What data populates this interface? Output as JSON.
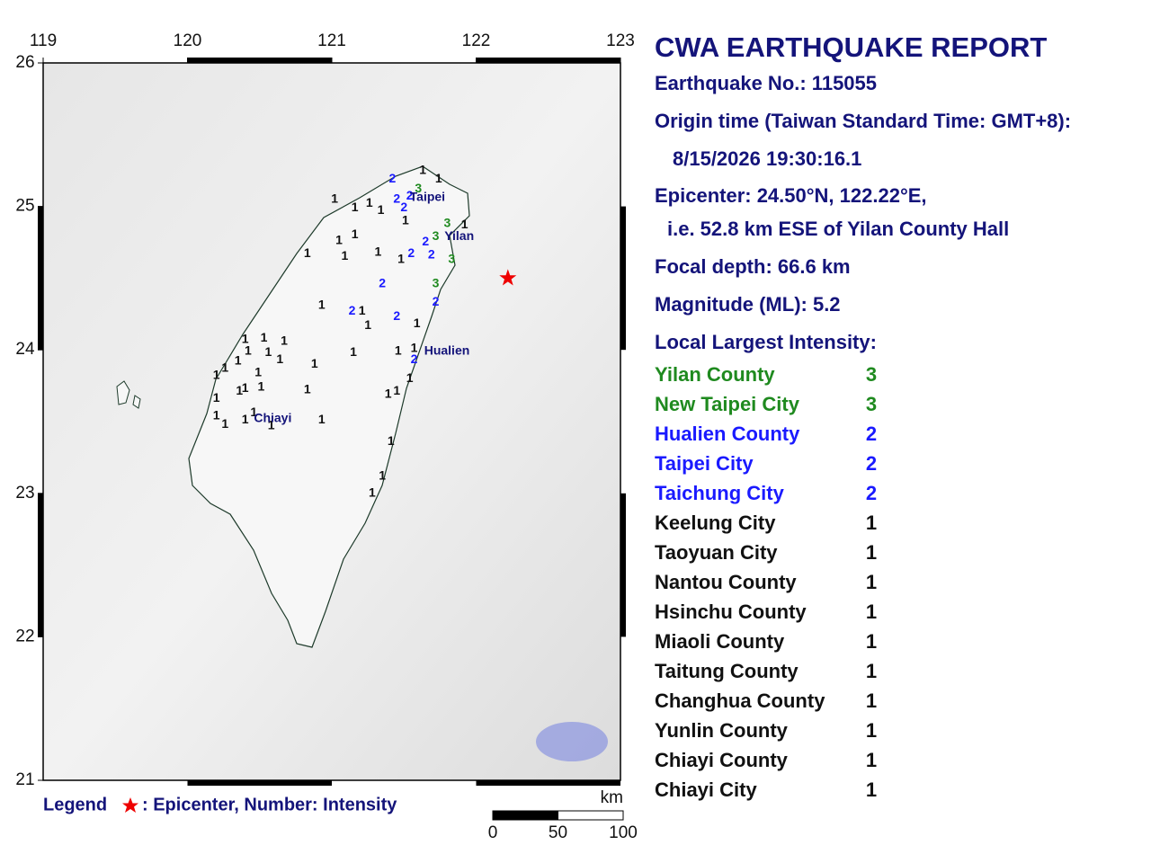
{
  "map": {
    "lon_ticks": [
      119,
      120,
      121,
      122,
      123
    ],
    "lat_ticks": [
      26,
      25,
      24,
      23,
      22,
      21
    ],
    "lon_range": [
      119,
      123
    ],
    "lat_range": [
      21,
      26
    ],
    "epicenter": {
      "lat": 24.5,
      "lon": 122.22
    },
    "intensity_colors": {
      "1": "#111111",
      "2": "#1a1aff",
      "3": "#1f8a1f"
    },
    "cities": [
      {
        "name": "Taipei",
        "lat": 25.06,
        "lon": 121.54
      },
      {
        "name": "Yilan",
        "lat": 24.79,
        "lon": 121.78
      },
      {
        "name": "Hualien",
        "lat": 23.99,
        "lon": 121.64
      },
      {
        "name": "Chiayi",
        "lat": 23.52,
        "lon": 120.46
      }
    ],
    "stations": [
      {
        "lat": 25.19,
        "lon": 121.42,
        "intensity": 2
      },
      {
        "lat": 25.05,
        "lon": 121.45,
        "intensity": 2
      },
      {
        "lat": 25.07,
        "lon": 121.54,
        "intensity": 2
      },
      {
        "lat": 24.99,
        "lon": 121.5,
        "intensity": 2
      },
      {
        "lat": 24.67,
        "lon": 121.55,
        "intensity": 2
      },
      {
        "lat": 24.66,
        "lon": 121.69,
        "intensity": 2
      },
      {
        "lat": 24.75,
        "lon": 121.65,
        "intensity": 2
      },
      {
        "lat": 24.46,
        "lon": 121.35,
        "intensity": 2
      },
      {
        "lat": 24.27,
        "lon": 121.14,
        "intensity": 2
      },
      {
        "lat": 24.23,
        "lon": 121.45,
        "intensity": 2
      },
      {
        "lat": 24.33,
        "lon": 121.72,
        "intensity": 2
      },
      {
        "lat": 23.93,
        "lon": 121.57,
        "intensity": 2
      },
      {
        "lat": 25.12,
        "lon": 121.6,
        "intensity": 3
      },
      {
        "lat": 24.88,
        "lon": 121.8,
        "intensity": 3
      },
      {
        "lat": 24.79,
        "lon": 121.72,
        "intensity": 3
      },
      {
        "lat": 24.63,
        "lon": 121.83,
        "intensity": 3
      },
      {
        "lat": 24.46,
        "lon": 121.72,
        "intensity": 3
      },
      {
        "lat": 25.05,
        "lon": 121.02,
        "intensity": 1
      },
      {
        "lat": 24.99,
        "lon": 121.16,
        "intensity": 1
      },
      {
        "lat": 25.02,
        "lon": 121.26,
        "intensity": 1
      },
      {
        "lat": 24.97,
        "lon": 121.34,
        "intensity": 1
      },
      {
        "lat": 25.25,
        "lon": 121.63,
        "intensity": 1
      },
      {
        "lat": 25.19,
        "lon": 121.74,
        "intensity": 1
      },
      {
        "lat": 24.9,
        "lon": 121.51,
        "intensity": 1
      },
      {
        "lat": 24.87,
        "lon": 121.92,
        "intensity": 1
      },
      {
        "lat": 24.76,
        "lon": 121.05,
        "intensity": 1
      },
      {
        "lat": 24.8,
        "lon": 121.16,
        "intensity": 1
      },
      {
        "lat": 24.68,
        "lon": 121.32,
        "intensity": 1
      },
      {
        "lat": 24.63,
        "lon": 121.48,
        "intensity": 1
      },
      {
        "lat": 24.67,
        "lon": 120.83,
        "intensity": 1
      },
      {
        "lat": 24.65,
        "lon": 121.09,
        "intensity": 1
      },
      {
        "lat": 24.31,
        "lon": 120.93,
        "intensity": 1
      },
      {
        "lat": 24.27,
        "lon": 121.21,
        "intensity": 1
      },
      {
        "lat": 24.18,
        "lon": 121.59,
        "intensity": 1
      },
      {
        "lat": 24.17,
        "lon": 121.25,
        "intensity": 1
      },
      {
        "lat": 24.07,
        "lon": 120.4,
        "intensity": 1
      },
      {
        "lat": 24.08,
        "lon": 120.53,
        "intensity": 1
      },
      {
        "lat": 24.06,
        "lon": 120.67,
        "intensity": 1
      },
      {
        "lat": 23.99,
        "lon": 120.42,
        "intensity": 1
      },
      {
        "lat": 23.98,
        "lon": 120.56,
        "intensity": 1
      },
      {
        "lat": 23.92,
        "lon": 120.35,
        "intensity": 1
      },
      {
        "lat": 23.87,
        "lon": 120.26,
        "intensity": 1
      },
      {
        "lat": 23.93,
        "lon": 120.64,
        "intensity": 1
      },
      {
        "lat": 23.9,
        "lon": 120.88,
        "intensity": 1
      },
      {
        "lat": 23.98,
        "lon": 121.15,
        "intensity": 1
      },
      {
        "lat": 23.99,
        "lon": 121.46,
        "intensity": 1
      },
      {
        "lat": 24.01,
        "lon": 121.57,
        "intensity": 1
      },
      {
        "lat": 23.82,
        "lon": 120.2,
        "intensity": 1
      },
      {
        "lat": 23.84,
        "lon": 120.49,
        "intensity": 1
      },
      {
        "lat": 23.73,
        "lon": 120.4,
        "intensity": 1
      },
      {
        "lat": 23.74,
        "lon": 120.51,
        "intensity": 1
      },
      {
        "lat": 23.66,
        "lon": 120.2,
        "intensity": 1
      },
      {
        "lat": 23.71,
        "lon": 120.36,
        "intensity": 1
      },
      {
        "lat": 23.72,
        "lon": 120.83,
        "intensity": 1
      },
      {
        "lat": 23.8,
        "lon": 121.54,
        "intensity": 1
      },
      {
        "lat": 23.69,
        "lon": 121.39,
        "intensity": 1
      },
      {
        "lat": 23.71,
        "lon": 121.45,
        "intensity": 1
      },
      {
        "lat": 23.54,
        "lon": 120.2,
        "intensity": 1
      },
      {
        "lat": 23.56,
        "lon": 120.46,
        "intensity": 1
      },
      {
        "lat": 23.48,
        "lon": 120.26,
        "intensity": 1
      },
      {
        "lat": 23.51,
        "lon": 120.4,
        "intensity": 1
      },
      {
        "lat": 23.47,
        "lon": 120.58,
        "intensity": 1
      },
      {
        "lat": 23.51,
        "lon": 120.93,
        "intensity": 1
      },
      {
        "lat": 23.36,
        "lon": 121.41,
        "intensity": 1
      },
      {
        "lat": 23.12,
        "lon": 121.35,
        "intensity": 1
      },
      {
        "lat": 23.0,
        "lon": 121.28,
        "intensity": 1
      }
    ],
    "legend": {
      "title": "Legend",
      "text": ": Epicenter, Number: Intensity"
    },
    "scale": {
      "unit": "km",
      "ticks": [
        0,
        50,
        100
      ]
    }
  },
  "report": {
    "title": "CWA EARTHQUAKE REPORT",
    "number": "Earthquake No.: 115055",
    "origin_label": "Origin time (Taiwan Standard Time: GMT+8):",
    "origin_time": "8/15/2026 19:30:16.1",
    "epicenter": "Epicenter: 24.50°N, 122.22°E,",
    "epicenter_note": "i.e. 52.8 km ESE of Yilan County Hall",
    "depth": "Focal depth: 66.6 km",
    "magnitude": "Magnitude (ML): 5.2",
    "intensity_header": "Local Largest Intensity:",
    "intensities": [
      {
        "name": "Yilan County",
        "intensity": 3
      },
      {
        "name": "New Taipei City",
        "intensity": 3
      },
      {
        "name": "Hualien County",
        "intensity": 2
      },
      {
        "name": "Taipei City",
        "intensity": 2
      },
      {
        "name": "Taichung City",
        "intensity": 2
      },
      {
        "name": "Keelung City",
        "intensity": 1
      },
      {
        "name": "Taoyuan City",
        "intensity": 1
      },
      {
        "name": "Nantou County",
        "intensity": 1
      },
      {
        "name": "Hsinchu County",
        "intensity": 1
      },
      {
        "name": "Miaoli County",
        "intensity": 1
      },
      {
        "name": "Taitung County",
        "intensity": 1
      },
      {
        "name": "Changhua County",
        "intensity": 1
      },
      {
        "name": "Yunlin County",
        "intensity": 1
      },
      {
        "name": "Chiayi County",
        "intensity": 1
      },
      {
        "name": "Chiayi City",
        "intensity": 1
      }
    ]
  }
}
